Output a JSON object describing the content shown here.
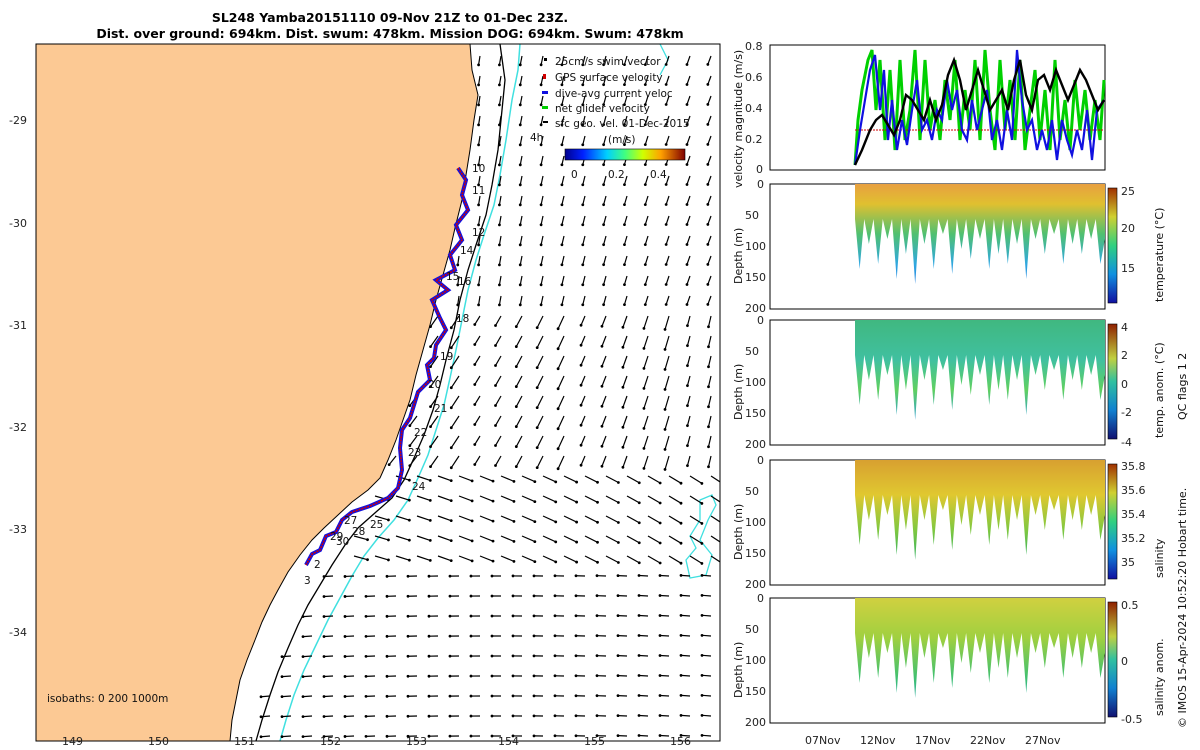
{
  "title": {
    "line1": "SL248 Yamba20151110 09-Nov 21Z to 01-Dec 23Z.",
    "line2": "Dist. over ground: 694km. Dist. swum: 478km. Mission DOG: 694km. Swum: 478km"
  },
  "map": {
    "lat_ticks": [
      "-29",
      "-30",
      "-31",
      "-32",
      "-33",
      "-34"
    ],
    "lon_ticks": [
      "149",
      "150",
      "151",
      "152",
      "153",
      "154",
      "155",
      "156"
    ],
    "isobaths_label": "isobaths: 0   200  1000m",
    "day_labels": [
      "10",
      "11",
      "12",
      "14",
      "15",
      "16",
      "18",
      "19",
      "20",
      "21",
      "22",
      "23",
      "24",
      "25",
      "27",
      "28",
      "29",
      "30",
      "2",
      "3"
    ],
    "legend": [
      "25cm/s swim vector",
      "GPS surface velocity",
      "dive-avg current veloc",
      "net glider velocity",
      "sfc geo. vel. 01-Dec-2015"
    ],
    "scale_label": "4h",
    "colorbar_unit": "(m/s)",
    "colorbar_ticks": [
      "0",
      "0.2",
      "0.4"
    ]
  },
  "panels": {
    "velocity_ylabel": "velocity magnitude (m/s)",
    "velocity_yticks": [
      "0",
      "0.2",
      "0.4",
      "0.6",
      "0.8"
    ],
    "depth_ylabel": "Depth (m)",
    "depth_ticks": [
      "0",
      "50",
      "100",
      "150",
      "200"
    ],
    "x_ticks": [
      "07Nov",
      "12Nov",
      "17Nov",
      "22Nov",
      "27Nov"
    ],
    "colorbars": [
      {
        "label": "temperature (°C)",
        "ticks": [
          "25",
          "20",
          "15"
        ]
      },
      {
        "label": "temp. anom. (°C)",
        "ticks": [
          "4",
          "2",
          "0",
          "-2",
          "-4"
        ]
      },
      {
        "label": "salinity",
        "ticks": [
          "35.8",
          "35.6",
          "35.4",
          "35.2",
          "35"
        ]
      },
      {
        "label": "salinity anom.",
        "ticks": [
          "0.5",
          "0",
          "-0.5"
        ]
      }
    ],
    "qc_label": "QC flags 1  2",
    "credit": "© IMOS 15-Apr-2024 10:52:20 Hobart time."
  },
  "colors": {
    "land": "#FCC994",
    "ocean": "#FFFFFF",
    "isobath_200": "#000000",
    "isobath_1000": "#40E0E0",
    "track_gps": "#D00000",
    "track_dive": "#1010E0",
    "net_velocity": "#00D000",
    "sfc_vel": "#000000"
  }
}
